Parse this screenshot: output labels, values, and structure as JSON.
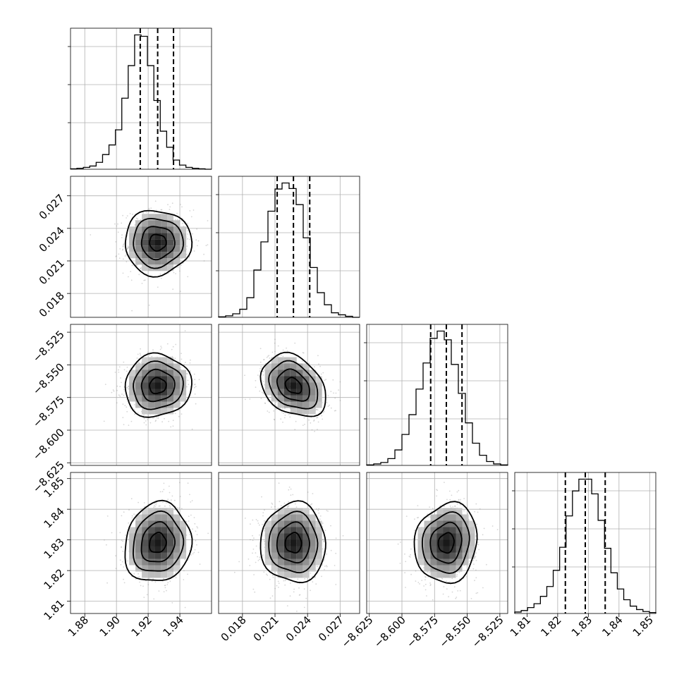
{
  "chart_data": {
    "type": "corner",
    "parameters": [
      {
        "range": [
          1.871,
          1.96
        ],
        "ticks": [
          1.88,
          1.9,
          1.92,
          1.94
        ],
        "tick_labels": [
          "1.88",
          "1.90",
          "1.92",
          "1.94"
        ],
        "quantiles": [
          1.915,
          1.926,
          1.936
        ],
        "mean": 1.926,
        "sd": 0.0105,
        "hist_bins": 22,
        "hist_counts": [
          1,
          2,
          4,
          7,
          15,
          32,
          53,
          86,
          155,
          226,
          293,
          290,
          226,
          150,
          83,
          48,
          20,
          9,
          4,
          2,
          1,
          0
        ]
      },
      {
        "range": [
          0.0158,
          0.0288
        ],
        "ticks": [
          0.018,
          0.021,
          0.024,
          0.027
        ],
        "tick_labels": [
          "0.018",
          "0.021",
          "0.024",
          "0.027"
        ],
        "quantiles": [
          0.0212,
          0.0227,
          0.0242
        ],
        "mean": 0.0227,
        "sd": 0.0015,
        "hist_bins": 20,
        "hist_counts": [
          1,
          3,
          7,
          16,
          39,
          94,
          150,
          211,
          255,
          267,
          256,
          224,
          158,
          99,
          49,
          25,
          9,
          5,
          2,
          0
        ]
      },
      {
        "range": [
          -8.627,
          -8.519
        ],
        "ticks": [
          -8.625,
          -8.6,
          -8.575,
          -8.55,
          -8.525
        ],
        "tick_labels": [
          "−8.625",
          "−8.600",
          "−8.575",
          "−8.550",
          "−8.525"
        ],
        "quantiles": [
          -8.578,
          -8.566,
          -8.554
        ],
        "mean": -8.566,
        "sd": 0.012,
        "hist_bins": 20,
        "hist_counts": [
          1,
          3,
          6,
          14,
          32,
          64,
          105,
          158,
          212,
          263,
          278,
          260,
          209,
          149,
          88,
          46,
          21,
          8,
          3,
          1
        ]
      },
      {
        "range": [
          1.806,
          1.852
        ],
        "ticks": [
          1.81,
          1.82,
          1.83,
          1.84,
          1.85
        ],
        "tick_labels": [
          "1.81",
          "1.82",
          "1.83",
          "1.84",
          "1.85"
        ],
        "quantiles": [
          1.8225,
          1.829,
          1.8355
        ],
        "mean": 1.829,
        "sd": 0.0065,
        "hist_bins": 22,
        "hist_counts": [
          3,
          6,
          12,
          20,
          35,
          55,
          88,
          135,
          199,
          250,
          274,
          274,
          244,
          190,
          133,
          83,
          50,
          28,
          15,
          8,
          4,
          2
        ]
      }
    ],
    "correlations": [
      [
        1.0,
        0.0,
        0.05,
        0.1
      ],
      [
        0.0,
        1.0,
        -0.3,
        0.0
      ],
      [
        0.05,
        -0.3,
        1.0,
        0.1
      ],
      [
        0.1,
        0.0,
        0.1,
        1.0
      ]
    ],
    "contour_levels": [
      0.5,
      1.0,
      1.5,
      2.0
    ],
    "grid": true
  }
}
